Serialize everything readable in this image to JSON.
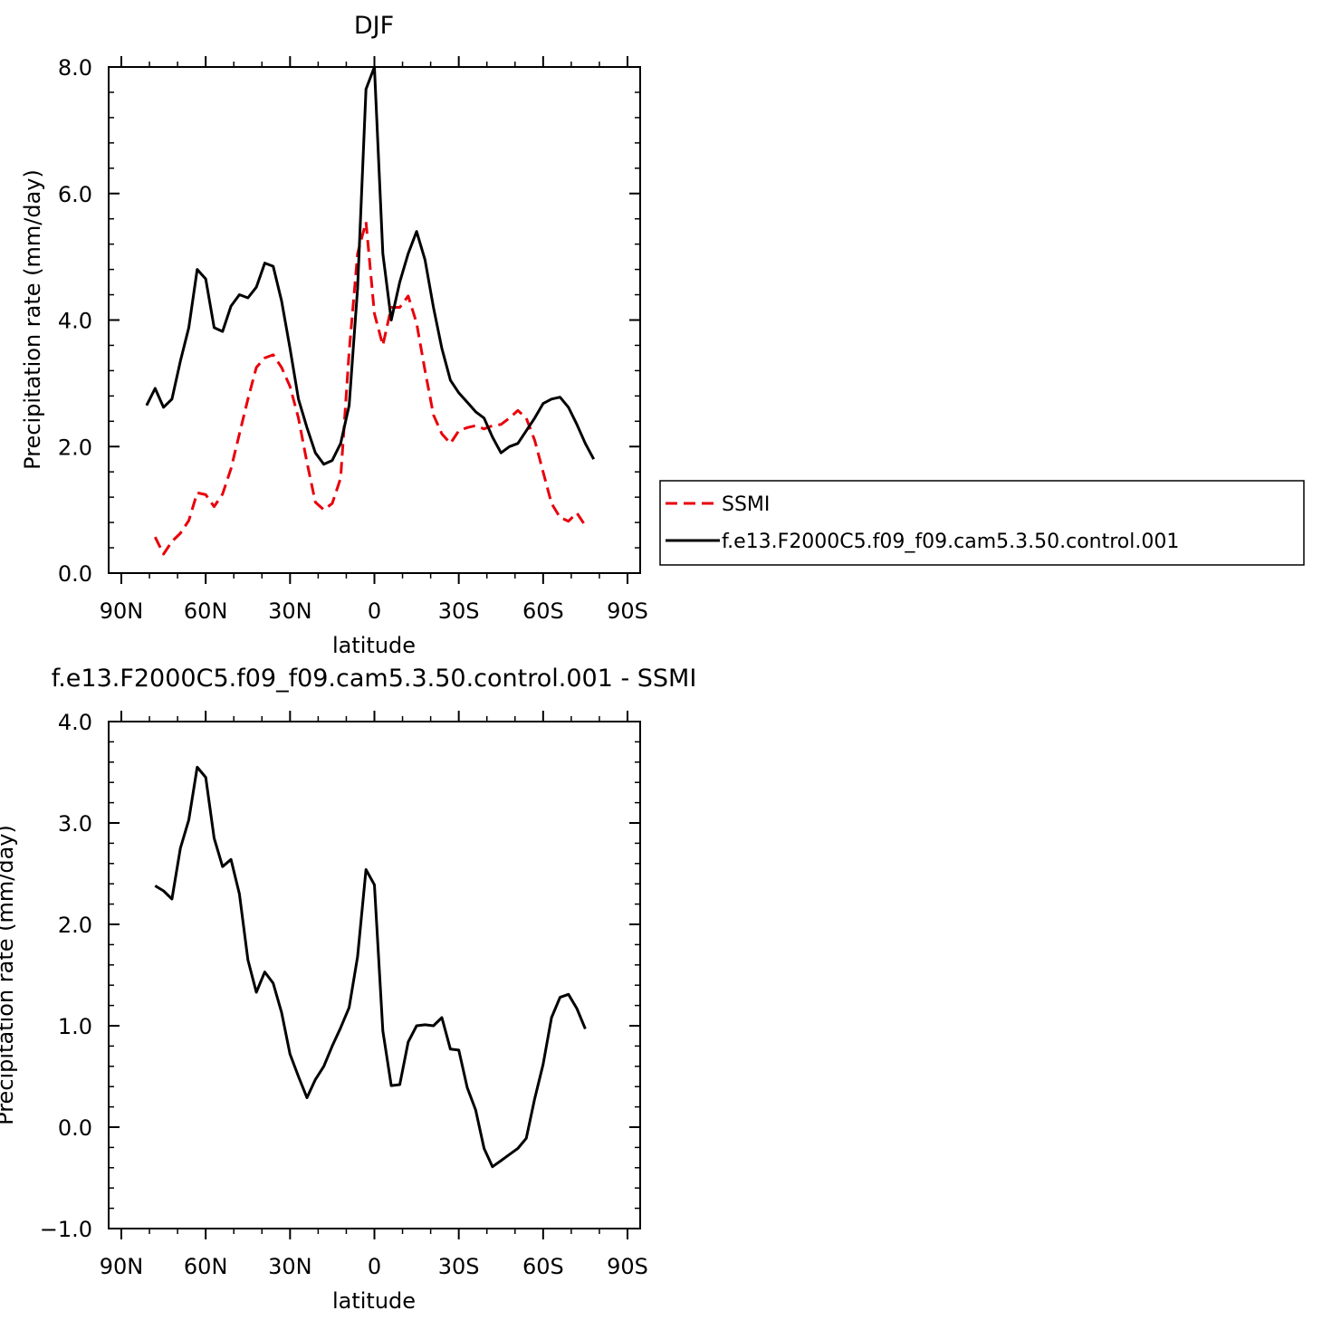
{
  "chart_data": [
    {
      "type": "line",
      "title": "DJF",
      "xlabel": "latitude",
      "ylabel": "Precipitation rate (mm/day)",
      "xlim": [
        90,
        -90
      ],
      "ylim": [
        0,
        8
      ],
      "x_ticks": [
        90,
        60,
        30,
        0,
        -30,
        -60,
        -90
      ],
      "x_tick_labels": [
        "90N",
        "60N",
        "30N",
        "0",
        "30S",
        "60S",
        "90S"
      ],
      "y_ticks": [
        0,
        2,
        4,
        6,
        8
      ],
      "y_tick_labels": [
        "0.0",
        "2.0",
        "4.0",
        "6.0",
        "8.0"
      ],
      "legend_position": "right",
      "series": [
        {
          "name": "SSMI",
          "color": "#e8000b",
          "dash": "dashed",
          "x": [
            78,
            75,
            72,
            69,
            66,
            63,
            60,
            57,
            54,
            51,
            48,
            45,
            42,
            39,
            36,
            33,
            30,
            27,
            24,
            21,
            18,
            15,
            12,
            9,
            6,
            3,
            0,
            -3,
            -6,
            -9,
            -12,
            -15,
            -18,
            -21,
            -24,
            -27,
            -30,
            -33,
            -36,
            -39,
            -42,
            -45,
            -48,
            -51,
            -54,
            -57,
            -60,
            -63,
            -66,
            -69,
            -72,
            -75
          ],
          "values": [
            0.57,
            0.3,
            0.5,
            0.63,
            0.83,
            1.27,
            1.24,
            1.05,
            1.25,
            1.65,
            2.2,
            2.75,
            3.25,
            3.4,
            3.45,
            3.25,
            2.95,
            2.45,
            1.75,
            1.12,
            1.0,
            1.1,
            1.5,
            3.5,
            5.05,
            5.55,
            4.1,
            3.6,
            4.2,
            4.2,
            4.38,
            3.95,
            3.2,
            2.5,
            2.2,
            2.05,
            2.25,
            2.3,
            2.33,
            2.28,
            2.33,
            2.35,
            2.45,
            2.57,
            2.45,
            2.1,
            1.6,
            1.1,
            0.88,
            0.82,
            0.95,
            0.75
          ]
        },
        {
          "name": "f.e13.F2000C5.f09_f09.cam5.3.50.control.001",
          "color": "#000000",
          "dash": "solid",
          "x": [
            81,
            78,
            75,
            72,
            69,
            66,
            63,
            60,
            57,
            54,
            51,
            48,
            45,
            42,
            39,
            36,
            33,
            30,
            27,
            24,
            21,
            18,
            15,
            12,
            9,
            6,
            3,
            0,
            -3,
            -6,
            -9,
            -12,
            -15,
            -18,
            -21,
            -24,
            -27,
            -30,
            -33,
            -36,
            -39,
            -42,
            -45,
            -48,
            -51,
            -54,
            -57,
            -60,
            -63,
            -66,
            -69,
            -72,
            -75,
            -78
          ],
          "values": [
            2.65,
            2.92,
            2.62,
            2.75,
            3.35,
            3.88,
            4.8,
            4.65,
            3.88,
            3.82,
            4.22,
            4.4,
            4.35,
            4.52,
            4.9,
            4.85,
            4.3,
            3.55,
            2.75,
            2.3,
            1.9,
            1.72,
            1.78,
            2.05,
            2.65,
            4.5,
            7.65,
            8.0,
            5.05,
            4.0,
            4.6,
            5.05,
            5.4,
            4.95,
            4.2,
            3.55,
            3.05,
            2.85,
            2.7,
            2.55,
            2.45,
            2.15,
            1.9,
            2.0,
            2.05,
            2.25,
            2.45,
            2.68,
            2.75,
            2.78,
            2.62,
            2.35,
            2.05,
            1.8
          ]
        }
      ]
    },
    {
      "type": "line",
      "title": "f.e13.F2000C5.f09_f09.cam5.3.50.control.001 - SSMI",
      "xlabel": "latitude",
      "ylabel": "Precipitation rate (mm/day)",
      "xlim": [
        90,
        -90
      ],
      "ylim": [
        -1,
        4
      ],
      "x_ticks": [
        90,
        60,
        30,
        0,
        -30,
        -60,
        -90
      ],
      "x_tick_labels": [
        "90N",
        "60N",
        "30N",
        "0",
        "30S",
        "60S",
        "90S"
      ],
      "y_ticks": [
        -1,
        0,
        1,
        2,
        3,
        4
      ],
      "y_tick_labels": [
        "−1.0",
        "0.0",
        "1.0",
        "2.0",
        "3.0",
        "4.0"
      ],
      "series": [
        {
          "color": "#000000",
          "dash": "solid",
          "x": [
            78,
            75,
            72,
            69,
            66,
            63,
            60,
            57,
            54,
            51,
            48,
            45,
            42,
            39,
            36,
            33,
            30,
            27,
            24,
            21,
            18,
            15,
            12,
            9,
            6,
            3,
            0,
            -3,
            -6,
            -9,
            -12,
            -15,
            -18,
            -21,
            -24,
            -27,
            -30,
            -33,
            -36,
            -39,
            -42,
            -45,
            -48,
            -51,
            -54,
            -57,
            -60,
            -63,
            -66,
            -69,
            -72,
            -75
          ],
          "values": [
            2.38,
            2.33,
            2.25,
            2.75,
            3.03,
            3.55,
            3.45,
            2.85,
            2.57,
            2.64,
            2.3,
            1.65,
            1.33,
            1.53,
            1.42,
            1.13,
            0.72,
            0.5,
            0.29,
            0.47,
            0.6,
            0.8,
            0.98,
            1.18,
            1.68,
            2.54,
            2.39,
            0.95,
            0.41,
            0.42,
            0.84,
            1.0,
            1.01,
            1.0,
            1.08,
            0.77,
            0.76,
            0.39,
            0.17,
            -0.21,
            -0.39,
            -0.33,
            -0.27,
            -0.21,
            -0.11,
            0.28,
            0.62,
            1.08,
            1.28,
            1.31,
            1.17,
            0.97
          ]
        }
      ]
    }
  ]
}
